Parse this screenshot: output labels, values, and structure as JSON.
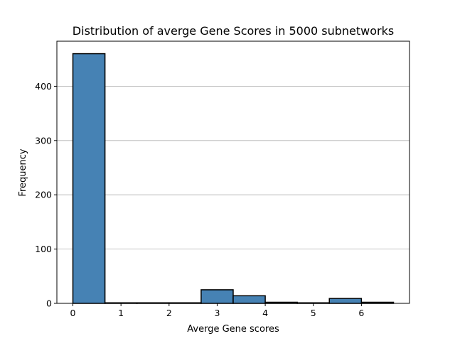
{
  "chart_data": {
    "type": "bar",
    "title": "Distribution of averge Gene Scores in 5000 subnetworks",
    "xlabel": "Averge Gene scores",
    "ylabel": "Frequency",
    "bins": [
      {
        "x0": 0.0,
        "x1": 0.667,
        "value": 460
      },
      {
        "x0": 0.667,
        "x1": 1.333,
        "value": 1
      },
      {
        "x0": 1.333,
        "x1": 2.0,
        "value": 1
      },
      {
        "x0": 2.0,
        "x1": 2.667,
        "value": 1
      },
      {
        "x0": 2.667,
        "x1": 3.333,
        "value": 25
      },
      {
        "x0": 3.333,
        "x1": 4.0,
        "value": 14
      },
      {
        "x0": 4.0,
        "x1": 4.667,
        "value": 2
      },
      {
        "x0": 4.667,
        "x1": 5.333,
        "value": 1
      },
      {
        "x0": 5.333,
        "x1": 6.0,
        "value": 9
      },
      {
        "x0": 6.0,
        "x1": 6.667,
        "value": 2
      }
    ],
    "xlim": [
      -0.333,
      7.0
    ],
    "ylim": [
      0,
      483
    ],
    "xticks": [
      "0",
      "1",
      "2",
      "3",
      "4",
      "5",
      "6"
    ],
    "yticks": [
      "0",
      "100",
      "200",
      "300",
      "400"
    ],
    "grid": {
      "y": true,
      "x": false
    },
    "bar_color": "#4682b4",
    "edge_color": "#000000",
    "grid_color": "#b0b0b0"
  }
}
